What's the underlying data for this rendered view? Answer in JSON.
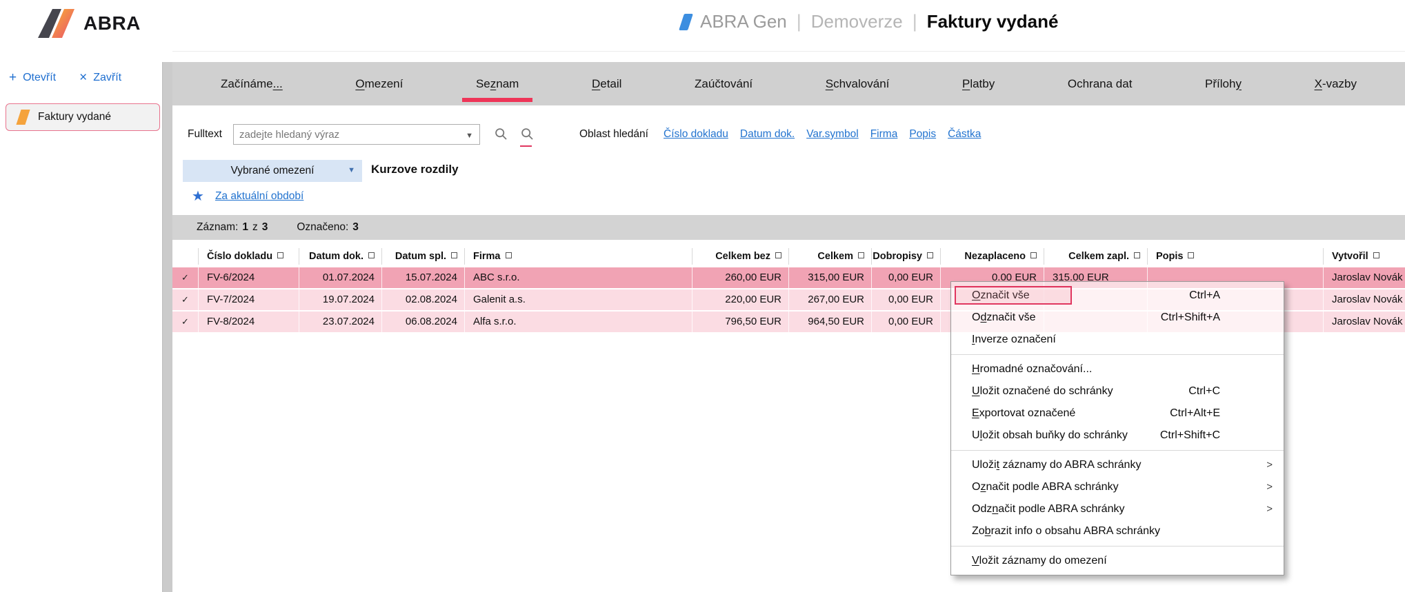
{
  "icons": {
    "plus": "+",
    "close": "×",
    "star": "★",
    "check": "✓",
    "dropdown_arrow": "▼",
    "submenu_arrow": ">"
  },
  "header": {
    "logo_text": "ABRA",
    "app_name": "ABRA Gen",
    "environment": "Demoverze",
    "page_title": "Faktury vydané",
    "separator": "|"
  },
  "sidebar": {
    "open_label": "Otevřít",
    "close_label": "Zavřít",
    "items": [
      {
        "label": "Faktury vydané"
      }
    ]
  },
  "tabs": [
    {
      "id": "zaciname",
      "pre": "Začínáme",
      "accel": "...",
      "post": "",
      "active": false
    },
    {
      "id": "omezeni",
      "pre": "",
      "accel": "O",
      "post": "mezení",
      "active": false
    },
    {
      "id": "seznam",
      "pre": "Se",
      "accel": "z",
      "post": "nam",
      "active": true
    },
    {
      "id": "detail",
      "pre": "",
      "accel": "D",
      "post": "etail",
      "active": false
    },
    {
      "id": "zauctovani",
      "pre": "Zaúčtování",
      "accel": "",
      "post": "",
      "active": false
    },
    {
      "id": "schvalovani",
      "pre": "",
      "accel": "S",
      "post": "chvalování",
      "active": false
    },
    {
      "id": "platby",
      "pre": "",
      "accel": "P",
      "post": "latby",
      "active": false
    },
    {
      "id": "ochrana-dat",
      "pre": "Ochrana dat",
      "accel": "",
      "post": "",
      "active": false
    },
    {
      "id": "prilohy",
      "pre": "Příloh",
      "accel": "y",
      "post": "",
      "active": false
    },
    {
      "id": "x-vazby",
      "pre": "",
      "accel": "X",
      "post": "-vazby",
      "active": false
    }
  ],
  "search": {
    "label": "Fulltext",
    "placeholder": "zadejte hledaný výraz",
    "scope_label": "Oblast hledání",
    "scope_links": [
      "Číslo dokladu",
      "Datum dok.",
      "Var.symbol",
      "Firma",
      "Popis",
      "Částka"
    ]
  },
  "filter": {
    "dropdown_label": "Vybrané omezení",
    "title": "Kurzove rozdily",
    "saved_filter": "Za aktuální období"
  },
  "statusbar": {
    "record_label": "Záznam:",
    "record_current": "1",
    "record_of": "z",
    "record_total": "3",
    "selected_label": "Označeno:",
    "selected_count": "3"
  },
  "table": {
    "columns": [
      {
        "key": "doc",
        "label": "Číslo dokladu",
        "align": "left"
      },
      {
        "key": "date",
        "label": "Datum dok.",
        "align": "right"
      },
      {
        "key": "due",
        "label": "Datum spl.",
        "align": "right"
      },
      {
        "key": "firm",
        "label": "Firma",
        "align": "left"
      },
      {
        "key": "net",
        "label": "Celkem bez",
        "align": "right"
      },
      {
        "key": "total",
        "label": "Celkem",
        "align": "right"
      },
      {
        "key": "credit",
        "label": "Dobropisy",
        "align": "right"
      },
      {
        "key": "unpaid",
        "label": "Nezaplaceno",
        "align": "right"
      },
      {
        "key": "paid",
        "label": "Celkem zapl.",
        "align": "right"
      },
      {
        "key": "desc",
        "label": "Popis",
        "align": "left"
      },
      {
        "key": "author",
        "label": "Vytvořil",
        "align": "left"
      }
    ],
    "rows": [
      {
        "selected": true,
        "doc": "FV-6/2024",
        "date": "01.07.2024",
        "due": "15.07.2024",
        "firm": "ABC s.r.o.",
        "net": "260,00 EUR",
        "total": "315,00 EUR",
        "credit": "0,00 EUR",
        "unpaid": "0.00 EUR",
        "paid": "315.00 EUR",
        "desc": "",
        "author": "Jaroslav Novák"
      },
      {
        "selected": false,
        "doc": "FV-7/2024",
        "date": "19.07.2024",
        "due": "02.08.2024",
        "firm": "Galenit a.s.",
        "net": "220,00 EUR",
        "total": "267,00 EUR",
        "credit": "0,00 EUR",
        "unpaid": "",
        "paid": "",
        "desc": "",
        "author": "Jaroslav Novák"
      },
      {
        "selected": false,
        "doc": "FV-8/2024",
        "date": "23.07.2024",
        "due": "06.08.2024",
        "firm": "Alfa s.r.o.",
        "net": "796,50 EUR",
        "total": "964,50 EUR",
        "credit": "0,00 EUR",
        "unpaid": "",
        "paid": "",
        "desc": "",
        "author": "Jaroslav Novák"
      }
    ]
  },
  "context_menu": {
    "items": [
      {
        "id": "oznacit-vse",
        "pre": "",
        "accel": "O",
        "post": "značit vše",
        "shortcut": "Ctrl+A",
        "highlighted": true
      },
      {
        "id": "odznacit-vse",
        "pre": "O",
        "accel": "d",
        "post": "značit vše",
        "shortcut": "Ctrl+Shift+A"
      },
      {
        "id": "inverze-oznaceni",
        "pre": "",
        "accel": "I",
        "post": "nverze označení"
      },
      {
        "separator": true
      },
      {
        "id": "hromadne-oznacovani",
        "pre": "",
        "accel": "H",
        "post": "romadné označování..."
      },
      {
        "id": "ulozit-oznacene-do-schranky",
        "pre": "",
        "accel": "U",
        "post": "ložit označené do schránky",
        "shortcut": "Ctrl+C"
      },
      {
        "id": "exportovat-oznacene",
        "pre": "",
        "accel": "E",
        "post": "xportovat označené",
        "shortcut": "Ctrl+Alt+E"
      },
      {
        "id": "ulozit-obsah-bunky-do-schranky",
        "pre": "U",
        "accel": "l",
        "post": "ožit obsah buňky do schránky",
        "shortcut": "Ctrl+Shift+C"
      },
      {
        "separator": true
      },
      {
        "id": "ulozit-zaznamy-do-abra-schranky",
        "pre": "Uloži",
        "accel": "t",
        "post": " záznamy do ABRA schránky",
        "submenu": true
      },
      {
        "id": "oznacit-podle-abra-schranky",
        "pre": "O",
        "accel": "z",
        "post": "načit podle ABRA schránky",
        "submenu": true
      },
      {
        "id": "odznacit-podle-abra-schranky",
        "pre": "Odz",
        "accel": "n",
        "post": "ačit podle ABRA schránky",
        "submenu": true
      },
      {
        "id": "zobrazit-info-o-obsahu-abra-schranky",
        "pre": "Zo",
        "accel": "b",
        "post": "razit info o obsahu ABRA schránky"
      },
      {
        "separator": true
      },
      {
        "id": "vlozit-zaznamy-do-omezeni",
        "pre": "",
        "accel": "V",
        "post": "ložit záznamy do omezení"
      }
    ]
  }
}
